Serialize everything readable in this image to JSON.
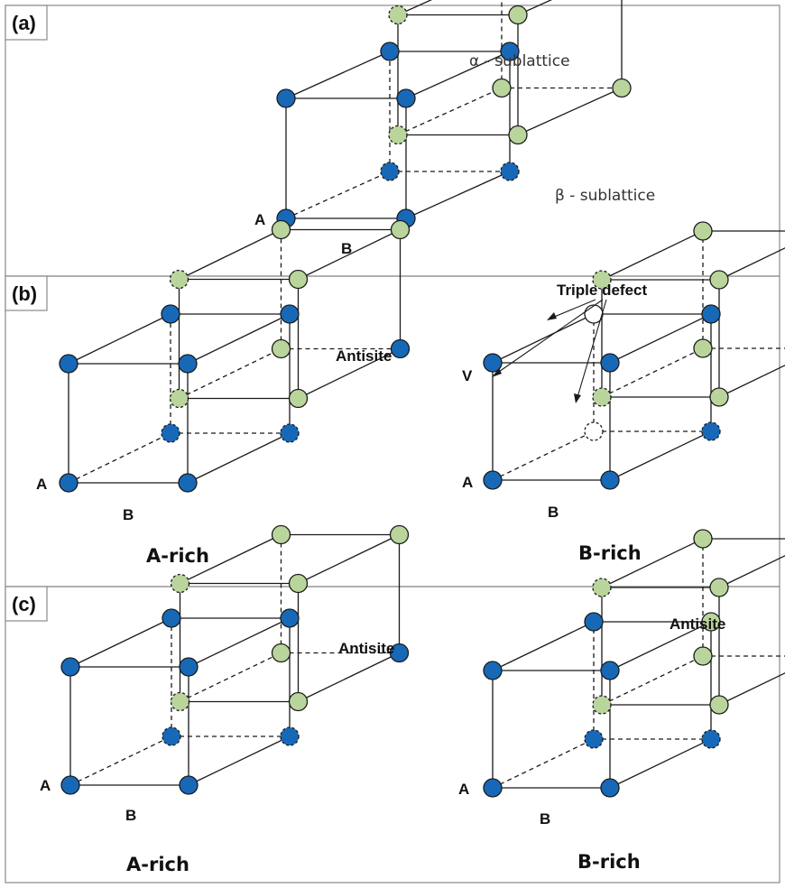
{
  "colors": {
    "A": "#1769b7",
    "B": "#b9d59c",
    "V": "#ffffff"
  },
  "panels": [
    {
      "id": "a",
      "label": "(a)",
      "cubes": [
        {
          "id": "a-cube",
          "A": [
            "A",
            "A",
            "A",
            "A",
            "A",
            "A",
            "A",
            "A"
          ],
          "B": [
            "B",
            "B",
            "B",
            "B",
            "B",
            "B",
            "B",
            "B"
          ],
          "site_labels": {
            "A": "A",
            "B": "B"
          },
          "caption": ""
        }
      ],
      "annotations": {
        "alpha": "α - sublattice",
        "beta": "β - sublattice"
      }
    },
    {
      "id": "b",
      "label": "(b)",
      "cubes": [
        {
          "id": "b-left",
          "A": [
            "A",
            "A",
            "A",
            "A",
            "A",
            "A",
            "A",
            "A"
          ],
          "B": [
            "B",
            "B",
            "B",
            "B",
            "B",
            "A",
            "B",
            "B"
          ],
          "site_labels": {
            "A": "A",
            "B": "B"
          },
          "caption": "A-rich",
          "annotation": "Antisite"
        },
        {
          "id": "b-right",
          "A": [
            "A",
            "A",
            "A",
            "A",
            "V",
            "A",
            "V",
            "A"
          ],
          "B": [
            "B",
            "B",
            "B",
            "B",
            "B",
            "B",
            "B",
            "B"
          ],
          "site_labels": {
            "A": "A",
            "B": "B",
            "V": "V"
          },
          "caption": "B-rich",
          "annotation": "Triple defect"
        }
      ]
    },
    {
      "id": "c",
      "label": "(c)",
      "cubes": [
        {
          "id": "c-left",
          "A": [
            "A",
            "A",
            "A",
            "A",
            "A",
            "A",
            "A",
            "A"
          ],
          "B": [
            "B",
            "B",
            "B",
            "B",
            "B",
            "A",
            "B",
            "B"
          ],
          "site_labels": {
            "A": "A",
            "B": "B"
          },
          "caption": "A-rich",
          "annotation": "Antisite"
        },
        {
          "id": "c-right",
          "A": [
            "A",
            "A",
            "A",
            "A",
            "A",
            "A",
            "A",
            "B"
          ],
          "B": [
            "B",
            "B",
            "B",
            "B",
            "B",
            "B",
            "B",
            "B"
          ],
          "site_labels": {
            "A": "A",
            "B": "B"
          },
          "caption": "B-rich",
          "annotation": "Antisite"
        }
      ]
    }
  ]
}
